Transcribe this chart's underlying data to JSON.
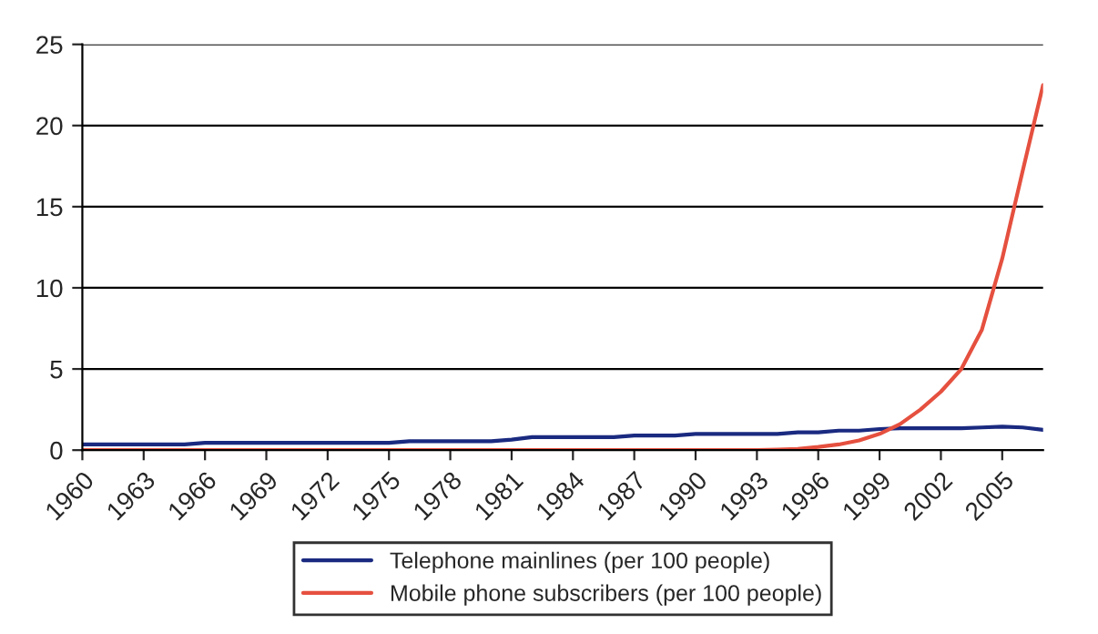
{
  "chart_data": {
    "type": "line",
    "categories": [
      "1960",
      null,
      null,
      "1963",
      null,
      null,
      "1966",
      null,
      null,
      "1969",
      null,
      null,
      "1972",
      null,
      null,
      "1975",
      null,
      null,
      "1978",
      null,
      null,
      "1981",
      null,
      null,
      "1984",
      null,
      null,
      "1987",
      null,
      null,
      "1990",
      null,
      null,
      "1993",
      null,
      null,
      "1996",
      null,
      null,
      "1999",
      null,
      null,
      "2002",
      null,
      null,
      "2005",
      null,
      null
    ],
    "series": [
      {
        "name": "Telephone mainlines (per 100 people)",
        "color": "#1a2a80",
        "values": [
          0.35,
          0.35,
          0.35,
          0.35,
          0.35,
          0.35,
          0.45,
          0.45,
          0.45,
          0.45,
          0.45,
          0.45,
          0.45,
          0.45,
          0.45,
          0.45,
          0.55,
          0.55,
          0.55,
          0.55,
          0.55,
          0.65,
          0.8,
          0.8,
          0.8,
          0.8,
          0.8,
          0.9,
          0.9,
          0.9,
          1.0,
          1.0,
          1.0,
          1.0,
          1.0,
          1.1,
          1.1,
          1.2,
          1.2,
          1.3,
          1.35,
          1.35,
          1.35,
          1.35,
          1.4,
          1.45,
          1.4,
          1.25
        ]
      },
      {
        "name": "Mobile phone subscribers (per 100 people)",
        "color": "#e5503f",
        "values": [
          0,
          0,
          0,
          0,
          0,
          0,
          0,
          0,
          0,
          0,
          0,
          0,
          0,
          0,
          0,
          0,
          0,
          0,
          0,
          0,
          0,
          0,
          0,
          0,
          0,
          0,
          0,
          0,
          0,
          0,
          0,
          0,
          0,
          0,
          0.03,
          0.08,
          0.2,
          0.35,
          0.6,
          1.0,
          1.6,
          2.5,
          3.6,
          5.0,
          7.4,
          11.8,
          17.2,
          22.5
        ]
      }
    ],
    "ylim": [
      0,
      25
    ],
    "yticks": [
      0,
      5,
      10,
      15,
      20,
      25
    ],
    "grid": "y",
    "legend": "bottom"
  }
}
